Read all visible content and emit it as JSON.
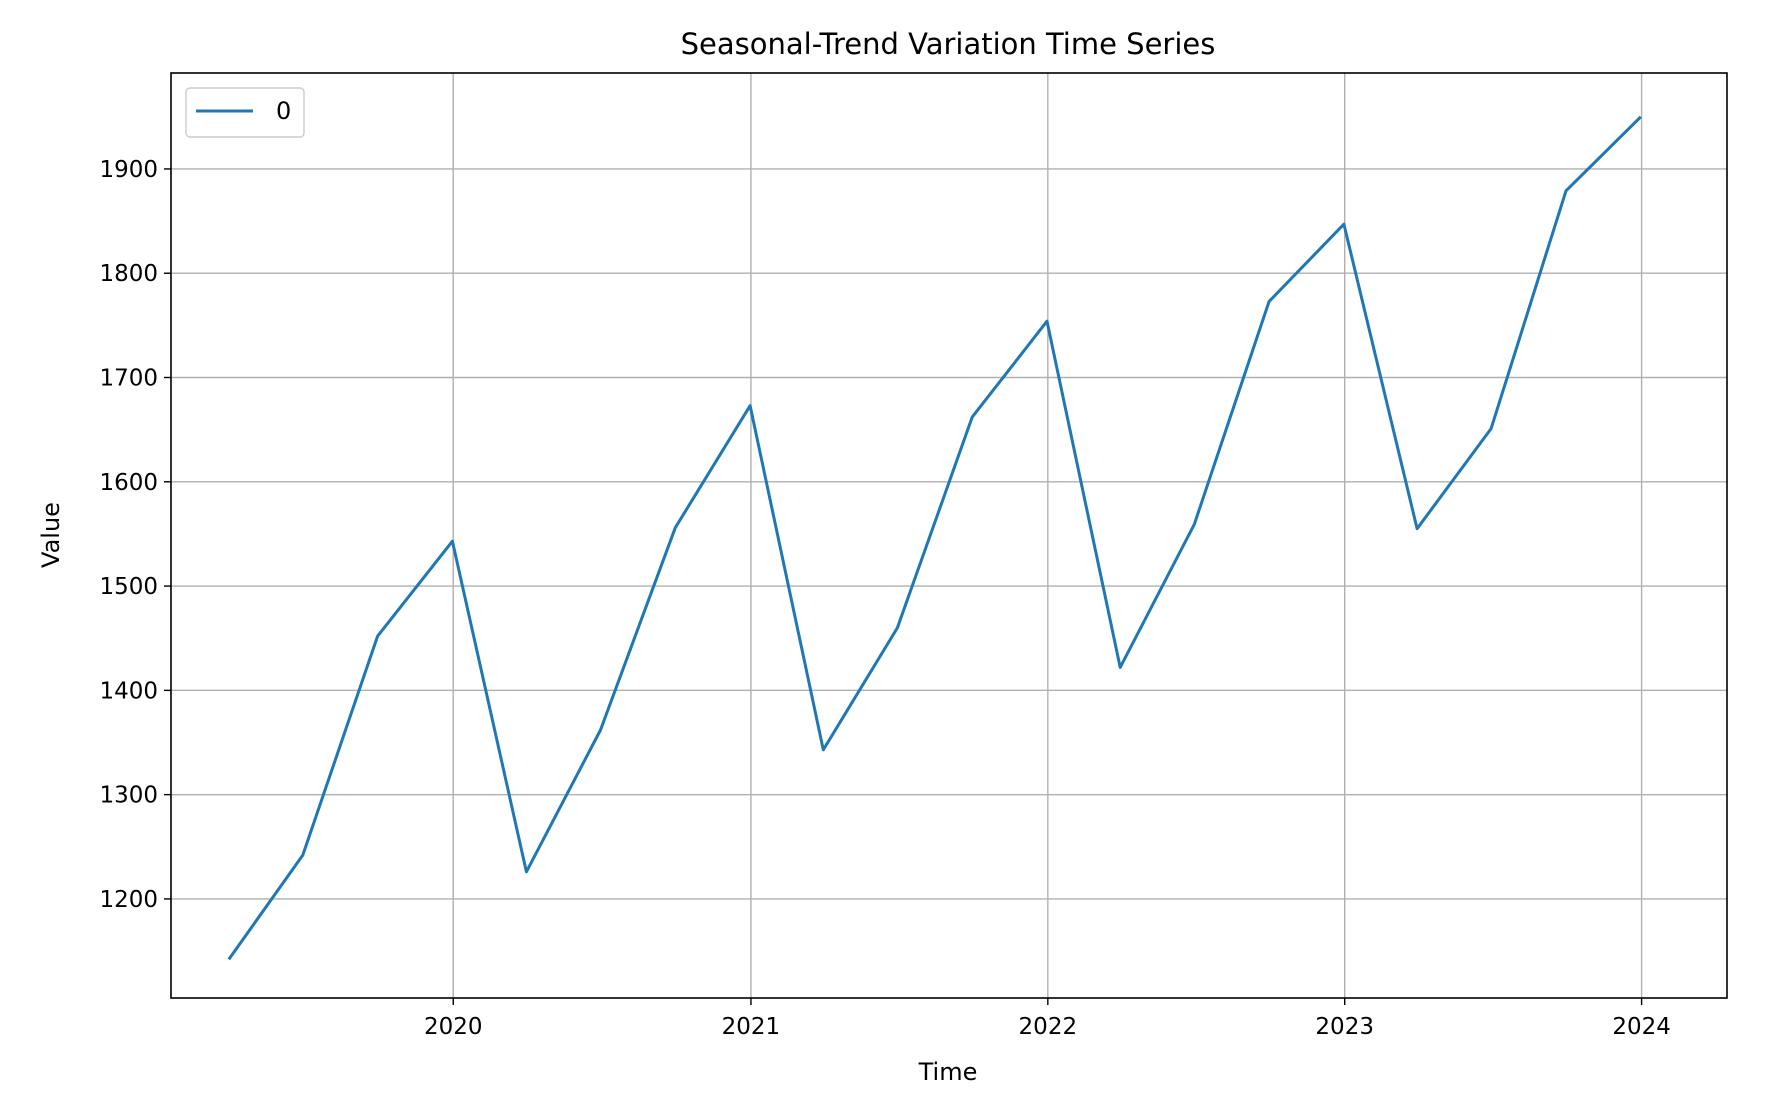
{
  "chart_data": {
    "type": "line",
    "title": "Seasonal-Trend Variation Time Series",
    "xlabel": "Time",
    "ylabel": "Value",
    "x_type": "date",
    "xlim": [
      "2019-01-19",
      "2024-04-15"
    ],
    "ylim": [
      1105,
      1992
    ],
    "x_ticks": [
      {
        "value": "2020-01-01",
        "label": "2020"
      },
      {
        "value": "2021-01-01",
        "label": "2021"
      },
      {
        "value": "2022-01-01",
        "label": "2022"
      },
      {
        "value": "2023-01-01",
        "label": "2023"
      },
      {
        "value": "2024-01-01",
        "label": "2024"
      }
    ],
    "y_ticks": [
      {
        "value": 1200,
        "label": "1200"
      },
      {
        "value": 1300,
        "label": "1300"
      },
      {
        "value": 1400,
        "label": "1400"
      },
      {
        "value": 1500,
        "label": "1500"
      },
      {
        "value": 1600,
        "label": "1600"
      },
      {
        "value": 1700,
        "label": "1700"
      },
      {
        "value": 1800,
        "label": "1800"
      },
      {
        "value": 1900,
        "label": "1900"
      }
    ],
    "grid": true,
    "legend": {
      "placement": "top-left"
    },
    "series": [
      {
        "name": "0",
        "color": "#1f77b4",
        "points": [
          {
            "x": "2019-03-31",
            "y": 1142
          },
          {
            "x": "2019-06-30",
            "y": 1242
          },
          {
            "x": "2019-09-30",
            "y": 1452
          },
          {
            "x": "2019-12-31",
            "y": 1543
          },
          {
            "x": "2020-03-31",
            "y": 1226
          },
          {
            "x": "2020-06-30",
            "y": 1362
          },
          {
            "x": "2020-09-30",
            "y": 1556
          },
          {
            "x": "2020-12-31",
            "y": 1673
          },
          {
            "x": "2021-03-31",
            "y": 1343
          },
          {
            "x": "2021-06-30",
            "y": 1460
          },
          {
            "x": "2021-09-30",
            "y": 1662
          },
          {
            "x": "2021-12-31",
            "y": 1754
          },
          {
            "x": "2022-03-31",
            "y": 1422
          },
          {
            "x": "2022-06-30",
            "y": 1559
          },
          {
            "x": "2022-09-30",
            "y": 1773
          },
          {
            "x": "2022-12-31",
            "y": 1847
          },
          {
            "x": "2023-03-31",
            "y": 1555
          },
          {
            "x": "2023-06-30",
            "y": 1651
          },
          {
            "x": "2023-09-30",
            "y": 1879
          },
          {
            "x": "2023-12-31",
            "y": 1950
          }
        ]
      }
    ]
  }
}
